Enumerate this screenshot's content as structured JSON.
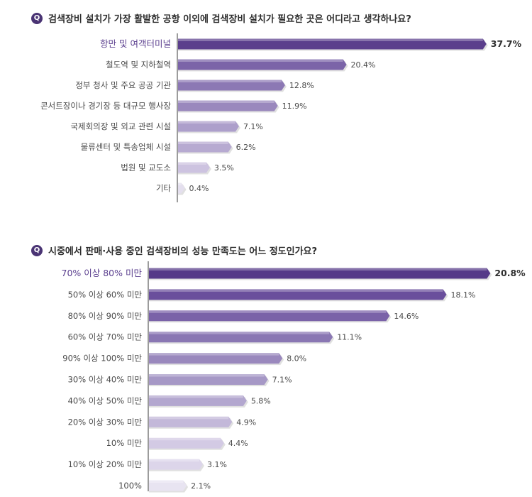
{
  "chart_data": [
    {
      "type": "bar",
      "badge": "Q",
      "title": "검색장비 설치가 가장 활발한 공항 이외에 검색장비 설치가 필요한 곳은 어디라고 생각하나요?",
      "categories": [
        "항만 및 여객터미널",
        "철도역 및 지하철역",
        "정부 청사 및 주요 공공 기관",
        "콘서트장이나 경기장 등 대규모 행사장",
        "국제회의장 및 외교 관련 시설",
        "물류센터 및 특송업체 시설",
        "법원 및 교도소",
        "기타"
      ],
      "values": [
        37.7,
        20.4,
        12.8,
        11.9,
        7.1,
        6.2,
        3.5,
        0.4
      ],
      "value_labels": [
        "37.7%",
        "20.4%",
        "12.8%",
        "11.9%",
        "7.1%",
        "6.2%",
        "3.5%",
        "0.4%"
      ],
      "colors": [
        "#5b3f8c",
        "#7b64a8",
        "#8c78b4",
        "#9a88bd",
        "#ad9fcb",
        "#b7aad1",
        "#cdc3e0",
        "#e4dfee"
      ],
      "highlight_index": 0
    },
    {
      "type": "bar",
      "badge": "Q",
      "title": "시중에서 판매·사용 중인 검색장비의 성능 만족도는 어느 정도인가요?",
      "categories": [
        "70% 이상 80% 미만",
        "50% 이상 60% 미만",
        "80% 이상 90% 미만",
        "60% 이상 70% 미만",
        "90% 이상 100% 미만",
        "30% 이상 40% 미만",
        "40% 이상 50% 미만",
        "20% 이상 30% 미만",
        "10% 미만",
        "10% 이상 20% 미만",
        "100%"
      ],
      "values": [
        20.8,
        18.1,
        14.6,
        11.1,
        8.0,
        7.1,
        5.8,
        4.9,
        4.4,
        3.1,
        2.1
      ],
      "value_labels": [
        "20.8%",
        "18.1%",
        "14.6%",
        "11.1%",
        "8.0%",
        "7.1%",
        "5.8%",
        "4.9%",
        "4.4%",
        "3.1%",
        "2.1%"
      ],
      "colors": [
        "#553a88",
        "#6a4f9c",
        "#7a62a8",
        "#8a77b3",
        "#9a88bd",
        "#a698c6",
        "#b3a7cf",
        "#c3b8d9",
        "#d3cae4",
        "#dcd5ea",
        "#e8e4f1"
      ],
      "highlight_index": 0
    }
  ]
}
